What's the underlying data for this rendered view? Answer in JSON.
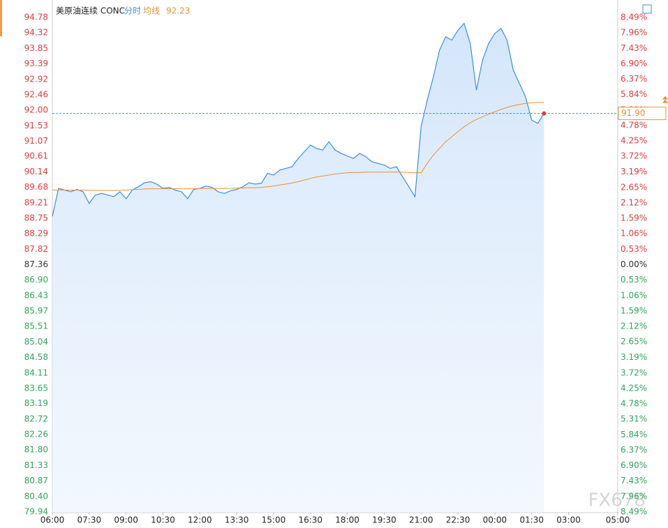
{
  "chart_data": {
    "type": "line",
    "title": "美原油连续 CONC",
    "watermark": "FX678",
    "up_color": "#e23b3b",
    "down_color": "#2fa55a",
    "flat_color": "#333333",
    "xlim": [
      "06:00",
      "05:00"
    ],
    "xticks": [
      "06:00",
      "07:30",
      "09:00",
      "10:30",
      "12:00",
      "13:30",
      "15:00",
      "16:30",
      "18:00",
      "19:30",
      "21:00",
      "22:30",
      "00:00",
      "01:30",
      "03:00",
      "05:00"
    ],
    "x": [
      "06:00",
      "06:15",
      "06:30",
      "06:45",
      "07:00",
      "07:15",
      "07:30",
      "07:45",
      "08:00",
      "08:15",
      "08:30",
      "08:45",
      "09:00",
      "09:15",
      "09:30",
      "09:45",
      "10:00",
      "10:15",
      "10:30",
      "10:45",
      "11:00",
      "11:15",
      "11:30",
      "11:45",
      "12:00",
      "12:15",
      "12:30",
      "12:45",
      "13:00",
      "13:15",
      "13:30",
      "13:45",
      "14:00",
      "14:15",
      "14:30",
      "14:45",
      "15:00",
      "15:15",
      "15:30",
      "15:45",
      "16:00",
      "16:15",
      "16:30",
      "16:45",
      "17:00",
      "17:15",
      "17:30",
      "17:45",
      "18:00",
      "18:15",
      "18:30",
      "18:45",
      "19:00",
      "19:15",
      "19:30",
      "19:45",
      "20:00",
      "20:15",
      "20:30",
      "20:45",
      "21:00",
      "21:15",
      "21:30",
      "21:45",
      "22:00",
      "22:15",
      "22:30",
      "22:45",
      "23:00",
      "23:15",
      "23:30",
      "23:45",
      "00:00",
      "00:15",
      "00:30",
      "00:45",
      "01:00",
      "01:15",
      "01:30",
      "01:45",
      "02:00"
    ],
    "series": [
      {
        "name": "分时",
        "color": "#3a8ee6",
        "values": [
          88.81,
          89.65,
          89.6,
          89.55,
          89.62,
          89.55,
          89.2,
          89.45,
          89.5,
          89.45,
          89.4,
          89.55,
          89.34,
          89.6,
          89.7,
          89.82,
          89.85,
          89.78,
          89.65,
          89.68,
          89.6,
          89.55,
          89.34,
          89.62,
          89.65,
          89.72,
          89.68,
          89.55,
          89.5,
          89.58,
          89.62,
          89.7,
          89.82,
          89.78,
          89.8,
          90.1,
          90.05,
          90.2,
          90.25,
          90.3,
          90.55,
          90.75,
          90.95,
          90.85,
          90.8,
          91.05,
          90.8,
          90.7,
          90.62,
          90.55,
          90.7,
          90.6,
          90.45,
          90.4,
          90.35,
          90.25,
          90.3,
          90.0,
          89.7,
          89.4,
          91.5,
          92.3,
          93.0,
          93.8,
          94.2,
          94.1,
          94.4,
          94.6,
          94.0,
          92.6,
          93.5,
          94.0,
          94.3,
          94.45,
          94.1,
          93.2,
          92.8,
          92.4,
          91.7,
          91.6,
          91.9
        ],
        "value_labels": [
          null,
          null,
          null,
          null,
          null,
          null,
          null,
          null,
          null,
          null,
          null,
          null,
          null,
          null,
          null,
          null,
          null,
          null,
          null,
          null,
          null,
          null,
          null,
          null,
          null,
          null,
          null,
          null,
          null,
          null,
          null,
          null,
          null,
          null,
          null,
          null,
          null,
          null,
          null,
          null,
          null,
          null,
          null,
          null,
          null,
          null,
          null,
          null,
          null,
          null,
          null,
          null,
          null,
          null,
          null,
          null,
          null,
          null,
          null,
          null,
          null,
          null,
          null,
          null,
          null,
          null,
          null,
          null,
          null,
          null,
          null,
          null,
          null,
          null,
          null,
          null,
          null,
          null,
          null,
          null,
          "91.90"
        ]
      },
      {
        "name": "均线",
        "color": "#e8913a",
        "values": [
          89.6,
          89.6,
          89.6,
          89.6,
          89.6,
          89.6,
          89.59,
          89.59,
          89.59,
          89.59,
          89.59,
          89.59,
          89.6,
          89.61,
          89.62,
          89.63,
          89.64,
          89.64,
          89.64,
          89.64,
          89.64,
          89.64,
          89.64,
          89.64,
          89.65,
          89.65,
          89.65,
          89.65,
          89.65,
          89.65,
          89.66,
          89.66,
          89.67,
          89.67,
          89.68,
          89.7,
          89.72,
          89.75,
          89.78,
          89.81,
          89.85,
          89.9,
          89.95,
          89.99,
          90.02,
          90.05,
          90.08,
          90.1,
          90.12,
          90.13,
          90.13,
          90.14,
          90.14,
          90.14,
          90.14,
          90.14,
          90.14,
          90.14,
          90.13,
          90.12,
          90.12,
          90.4,
          90.65,
          90.85,
          91.05,
          91.2,
          91.35,
          91.5,
          91.62,
          91.72,
          91.8,
          91.88,
          91.95,
          92.02,
          92.08,
          92.13,
          92.17,
          92.2,
          92.22,
          92.23,
          92.23
        ]
      }
    ],
    "ylim": [
      79.94,
      94.78
    ],
    "yticks": [
      94.78,
      94.32,
      93.85,
      93.39,
      92.92,
      92.46,
      {
        "value": 92,
        "label": "92.00"
      },
      91.53,
      91.07,
      90.61,
      90.14,
      89.68,
      89.21,
      88.75,
      88.29,
      87.82,
      87.36,
      {
        "value": 86.9,
        "label": "86.90"
      },
      86.43,
      85.97,
      85.51,
      85.04,
      84.58,
      84.11,
      83.65,
      83.19,
      82.72,
      82.26,
      {
        "value": 81.8,
        "label": "81.80"
      },
      81.33,
      80.87,
      {
        "value": 80.4,
        "label": "80.40"
      },
      79.94
    ],
    "y2lim": [
      -8.49,
      8.49
    ],
    "y2ticks": [
      {
        "value": 8.49,
        "label": "8.49%"
      },
      {
        "value": 7.96,
        "label": "7.96%"
      },
      {
        "value": 7.43,
        "label": "7.43%"
      },
      {
        "value": 6.9,
        "label": "6.90%"
      },
      {
        "value": 6.37,
        "label": "6.37%"
      },
      {
        "value": 5.84,
        "label": "5.84%"
      },
      {
        "value": 5.31,
        "label": "5.31%"
      },
      {
        "value": 4.78,
        "label": "4.78%"
      },
      {
        "value": 4.25,
        "label": "4.25%"
      },
      {
        "value": 3.72,
        "label": "3.72%"
      },
      {
        "value": 3.19,
        "label": "3.19%"
      },
      {
        "value": 2.65,
        "label": "2.65%"
      },
      {
        "value": 2.12,
        "label": "2.12%"
      },
      {
        "value": 1.59,
        "label": "1.59%"
      },
      {
        "value": 1.06,
        "label": "1.06%"
      },
      {
        "value": 0.53,
        "label": "0.53%"
      },
      {
        "value": 0,
        "label": "0.00%"
      },
      {
        "value": -0.53,
        "label": "0.53%"
      },
      {
        "value": -1.06,
        "label": "1.06%"
      },
      {
        "value": -1.59,
        "label": "1.59%"
      },
      {
        "value": -2.12,
        "label": "2.12%"
      },
      {
        "value": -2.65,
        "label": "2.65%"
      },
      {
        "value": -3.19,
        "label": "3.19%"
      },
      {
        "value": -3.72,
        "label": "3.72%"
      },
      {
        "value": -4.25,
        "label": "4.25%"
      },
      {
        "value": -4.78,
        "label": "4.78%"
      },
      {
        "value": -5.31,
        "label": "5.31%"
      },
      {
        "value": -5.84,
        "label": "5.84%"
      },
      {
        "value": -6.37,
        "label": "6.37%"
      },
      {
        "value": -6.9,
        "label": "6.90%"
      },
      {
        "value": -7.43,
        "label": "7.43%"
      },
      {
        "value": -7.96,
        "label": "7.96%"
      },
      {
        "value": -8.49,
        "label": "8.49%"
      }
    ]
  }
}
